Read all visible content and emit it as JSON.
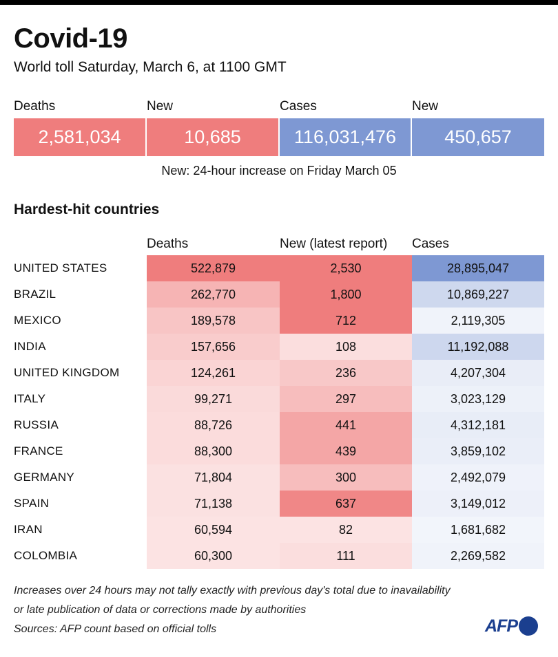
{
  "header": {
    "title": "Covid-19",
    "subtitle": "World toll Saturday, March 6,  at 1100 GMT"
  },
  "summary": {
    "deaths_label": "Deaths",
    "deaths_value": "2,581,034",
    "deaths_new_label": "New",
    "deaths_new_value": "10,685",
    "cases_label": "Cases",
    "cases_value": "116,031,476",
    "cases_new_label": "New",
    "cases_new_value": "450,657",
    "note": "New: 24-hour increase on Friday March 05"
  },
  "table": {
    "section_title": "Hardest-hit countries",
    "col_deaths": "Deaths",
    "col_new": "New (latest report)",
    "col_cases": "Cases"
  },
  "colors": {
    "death_accent": "#ef7d7d",
    "case_accent": "#7e98d3",
    "death_base": [
      239,
      125,
      125
    ],
    "case_base": [
      126,
      152,
      211
    ]
  },
  "chart_data": {
    "type": "table",
    "columns": [
      "Deaths",
      "New (latest report)",
      "Cases"
    ],
    "rows": [
      {
        "country": "UNITED STATES",
        "deaths": 522879,
        "new": 2530,
        "cases": 28895047,
        "deaths_text": "522,879",
        "new_text": "2,530",
        "cases_text": "28,895,047"
      },
      {
        "country": "BRAZIL",
        "deaths": 262770,
        "new": 1800,
        "cases": 10869227,
        "deaths_text": "262,770",
        "new_text": "1,800",
        "cases_text": "10,869,227"
      },
      {
        "country": "MEXICO",
        "deaths": 189578,
        "new": 712,
        "cases": 2119305,
        "deaths_text": "189,578",
        "new_text": "712",
        "cases_text": "2,119,305"
      },
      {
        "country": "INDIA",
        "deaths": 157656,
        "new": 108,
        "cases": 11192088,
        "deaths_text": "157,656",
        "new_text": "108",
        "cases_text": "11,192,088"
      },
      {
        "country": "UNITED KINGDOM",
        "deaths": 124261,
        "new": 236,
        "cases": 4207304,
        "deaths_text": "124,261",
        "new_text": "236",
        "cases_text": "4,207,304"
      },
      {
        "country": "ITALY",
        "deaths": 99271,
        "new": 297,
        "cases": 3023129,
        "deaths_text": "99,271",
        "new_text": "297",
        "cases_text": "3,023,129"
      },
      {
        "country": "RUSSIA",
        "deaths": 88726,
        "new": 441,
        "cases": 4312181,
        "deaths_text": "88,726",
        "new_text": "441",
        "cases_text": "4,312,181"
      },
      {
        "country": "FRANCE",
        "deaths": 88300,
        "new": 439,
        "cases": 3859102,
        "deaths_text": "88,300",
        "new_text": "439",
        "cases_text": "3,859,102"
      },
      {
        "country": "GERMANY",
        "deaths": 71804,
        "new": 300,
        "cases": 2492079,
        "deaths_text": "71,804",
        "new_text": "300",
        "cases_text": "2,492,079"
      },
      {
        "country": "SPAIN",
        "deaths": 71138,
        "new": 637,
        "cases": 3149012,
        "deaths_text": "71,138",
        "new_text": "637",
        "cases_text": "3,149,012"
      },
      {
        "country": "IRAN",
        "deaths": 60594,
        "new": 82,
        "cases": 1681682,
        "deaths_text": "60,594",
        "new_text": "82",
        "cases_text": "1,681,682"
      },
      {
        "country": "COLOMBIA",
        "deaths": 60300,
        "new": 111,
        "cases": 2269582,
        "deaths_text": "60,300",
        "new_text": "111",
        "cases_text": "2,269,582"
      }
    ]
  },
  "footer": {
    "note_line1": "Increases over 24 hours may not tally exactly with previous day's total due to inavailability",
    "note_line2": "or late publication of data or corrections made by authorities",
    "sources": "Sources: AFP count based on official tolls",
    "logo": "AFP"
  }
}
